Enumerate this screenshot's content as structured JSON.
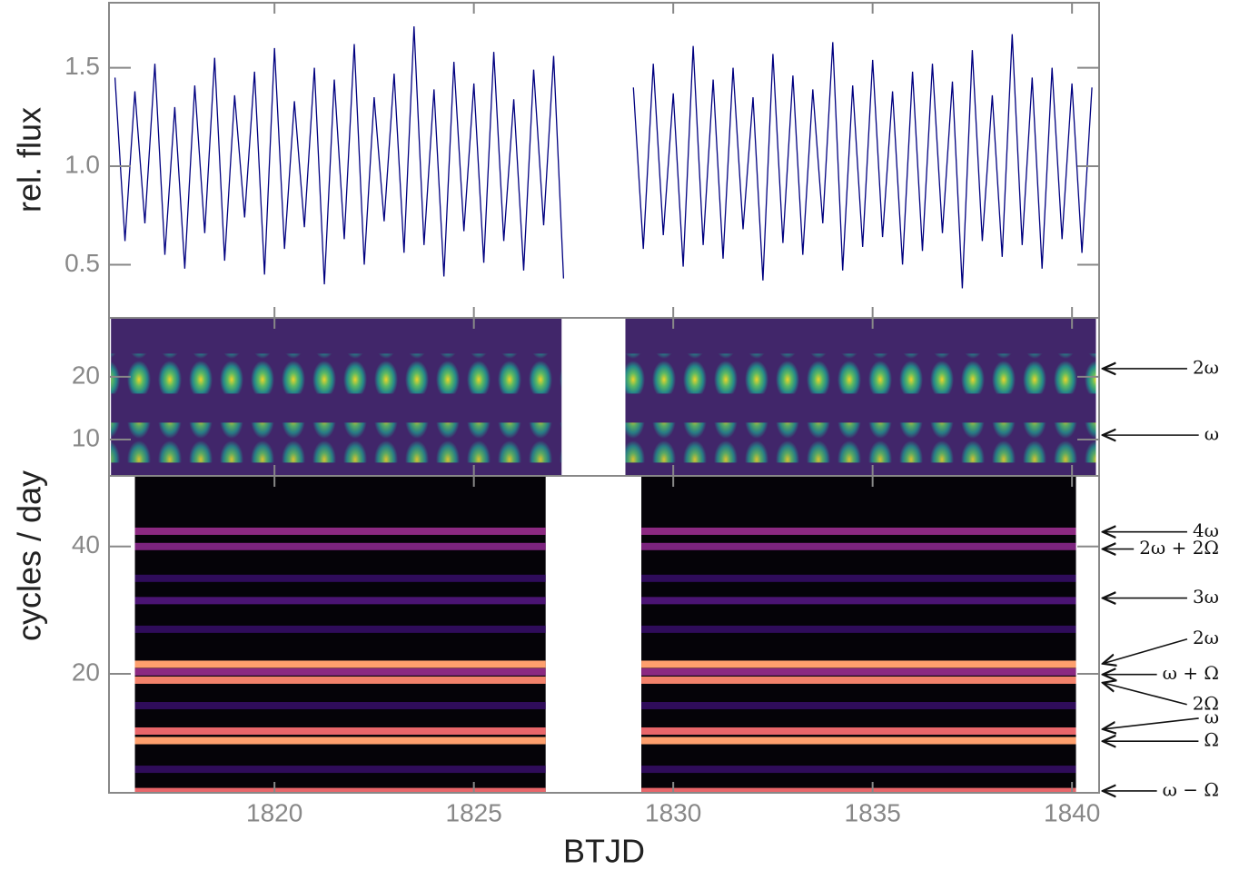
{
  "chart_data": [
    {
      "type": "line",
      "ylabel": "rel. flux",
      "xlim": [
        1815.85,
        1840.68
      ],
      "xticks": [
        1820,
        1825,
        1830,
        1835,
        1840
      ],
      "ylim": [
        0.23,
        1.83
      ],
      "yticks": [
        0.5,
        {
          "value": 1,
          "label": "1.0"
        },
        1.5
      ],
      "series": [
        {
          "color": "#000080",
          "x": [
            1816.0,
            1816.25,
            1816.5,
            1816.75,
            1817.0,
            1817.25,
            1817.5,
            1817.75,
            1818.0,
            1818.25,
            1818.5,
            1818.75,
            1819.0,
            1819.25,
            1819.5,
            1819.75,
            1820.0,
            1820.25,
            1820.5,
            1820.75,
            1821.0,
            1821.25,
            1821.5,
            1821.75,
            1822.0,
            1822.25,
            1822.5,
            1822.75,
            1823.0,
            1823.25,
            1823.5,
            1823.75,
            1824.0,
            1824.25,
            1824.5,
            1824.75,
            1825.0,
            1825.25,
            1825.5,
            1825.75,
            1826.0,
            1826.25,
            1826.5,
            1826.75,
            1827.0,
            1827.25,
            1828.0,
            1829.0,
            1829.25,
            1829.5,
            1829.75,
            1830.0,
            1830.25,
            1830.5,
            1830.75,
            1831.0,
            1831.25,
            1831.5,
            1831.75,
            1832.0,
            1832.25,
            1832.5,
            1832.75,
            1833.0,
            1833.25,
            1833.5,
            1833.75,
            1834.0,
            1834.25,
            1834.5,
            1834.75,
            1835.0,
            1835.25,
            1835.5,
            1835.75,
            1836.0,
            1836.25,
            1836.5,
            1836.75,
            1837.0,
            1837.25,
            1837.5,
            1837.75,
            1838.0,
            1838.25,
            1838.5,
            1838.75,
            1839.0,
            1839.25,
            1839.5,
            1839.75,
            1840.0,
            1840.25,
            1840.5
          ],
          "values": [
            1.45,
            0.62,
            1.38,
            0.71,
            1.52,
            0.55,
            1.3,
            0.48,
            1.41,
            0.66,
            1.55,
            0.52,
            1.36,
            0.74,
            1.48,
            0.45,
            1.6,
            0.58,
            1.33,
            0.69,
            1.5,
            0.4,
            1.44,
            0.63,
            1.62,
            0.5,
            1.35,
            0.72,
            1.47,
            0.56,
            1.71,
            0.6,
            1.39,
            0.44,
            1.53,
            0.67,
            1.42,
            0.51,
            1.58,
            0.62,
            1.34,
            0.47,
            1.49,
            0.7,
            1.56,
            0.43,
            null,
            1.4,
            0.58,
            1.52,
            0.65,
            1.37,
            0.49,
            1.61,
            0.6,
            1.44,
            0.53,
            1.5,
            0.68,
            1.35,
            0.42,
            1.57,
            0.61,
            1.46,
            0.55,
            1.39,
            0.71,
            1.63,
            0.47,
            1.41,
            0.59,
            1.54,
            0.64,
            1.38,
            0.5,
            1.48,
            0.57,
            1.52,
            0.66,
            1.43,
            0.38,
            1.59,
            0.62,
            1.36,
            0.54,
            1.67,
            0.6,
            1.45,
            0.48,
            1.5,
            0.63,
            1.42,
            0.56,
            1.4
          ]
        }
      ]
    },
    {
      "type": "spectrogram",
      "ylabel": "cycles / day",
      "colormap": "viridis",
      "xlim": [
        1815.85,
        1840.68
      ],
      "xticks": [
        1820,
        1825,
        1830,
        1835,
        1840
      ],
      "ylim": [
        4.2,
        29.4
      ],
      "yticks": [
        10,
        20
      ],
      "segments": [
        [
          1815.9,
          1827.2
        ],
        [
          1828.8,
          1840.6
        ]
      ],
      "bands": [
        {
          "frequency": 20.5,
          "intensity": 0.9
        },
        {
          "frequency": 9.5,
          "intensity": 0.8
        }
      ],
      "annotations": [
        {
          "label": "2ω",
          "frequency": 21.3
        },
        {
          "label": "ω",
          "frequency": 10.7
        }
      ]
    },
    {
      "type": "spectrogram",
      "xlabel": "BTJD",
      "colormap": "magma",
      "xlim": [
        1815.85,
        1840.68
      ],
      "xticks": [
        1820,
        1825,
        1830,
        1835,
        1840
      ],
      "ylim": [
        1.3,
        51.1
      ],
      "yticks": [
        20,
        40
      ],
      "segments": [
        [
          1816.5,
          1826.8
        ],
        [
          1829.2,
          1840.1
        ]
      ],
      "bands": [
        {
          "frequency": 42.4,
          "intensity": 0.5
        },
        {
          "frequency": 40.0,
          "intensity": 0.45
        },
        {
          "frequency": 35.0,
          "intensity": 0.2
        },
        {
          "frequency": 31.5,
          "intensity": 0.3
        },
        {
          "frequency": 27.0,
          "intensity": 0.2
        },
        {
          "frequency": 21.5,
          "intensity": 0.9
        },
        {
          "frequency": 20.3,
          "intensity": 0.5
        },
        {
          "frequency": 19.0,
          "intensity": 0.85
        },
        {
          "frequency": 15.0,
          "intensity": 0.2
        },
        {
          "frequency": 11.0,
          "intensity": 0.8
        },
        {
          "frequency": 9.5,
          "intensity": 0.9
        },
        {
          "frequency": 5.0,
          "intensity": 0.2
        },
        {
          "frequency": 1.5,
          "intensity": 0.8
        }
      ],
      "annotations": [
        {
          "label": "4ω",
          "frequency": 42.3
        },
        {
          "label": "2ω + 2Ω",
          "frequency": 39.6
        },
        {
          "label": "3ω",
          "frequency": 31.9
        },
        {
          "label": "2ω",
          "frequency": 21.6
        },
        {
          "label": "ω + Ω",
          "frequency": 19.9
        },
        {
          "label": "2Ω",
          "frequency": 18.6
        },
        {
          "label": "ω",
          "frequency": 11.3
        },
        {
          "label": "Ω",
          "frequency": 9.4
        },
        {
          "label": "ω − Ω",
          "frequency": 1.6
        }
      ]
    }
  ]
}
